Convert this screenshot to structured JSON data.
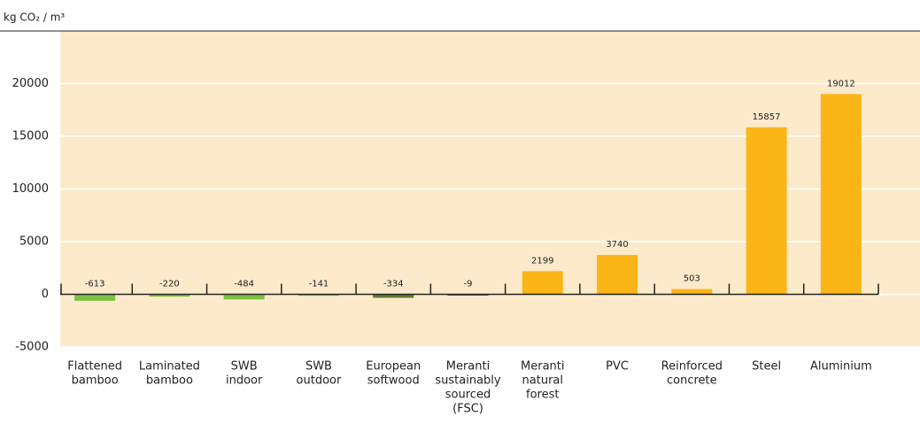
{
  "chart_data": {
    "type": "bar",
    "y_axis_label": "kg CO₂ / m³",
    "categories": [
      [
        "Flattened",
        "bamboo"
      ],
      [
        "Laminated",
        "bamboo"
      ],
      [
        "SWB",
        "indoor"
      ],
      [
        "SWB",
        "outdoor"
      ],
      [
        "European",
        "softwood"
      ],
      [
        "Meranti",
        "sustainably",
        "sourced",
        "(FSC)"
      ],
      [
        "Meranti",
        "natural",
        "forest"
      ],
      [
        "PVC"
      ],
      [
        "Reinforced",
        "concrete"
      ],
      [
        "Steel"
      ],
      [
        "Aluminium"
      ]
    ],
    "values": [
      -613,
      -220,
      -484,
      -141,
      -334,
      -9,
      2199,
      3740,
      503,
      15857,
      19012
    ],
    "colors": [
      "#7cc142",
      "#7cc142",
      "#7cc142",
      "#7cc142",
      "#5d7a36",
      "#5a6a3a",
      "#fbb517",
      "#fbb517",
      "#fbb517",
      "#fbb517",
      "#fbb517"
    ],
    "ylim": [
      -5000,
      25000
    ],
    "yticks": [
      -5000,
      0,
      5000,
      10000,
      15000,
      20000
    ],
    "grid": true
  }
}
